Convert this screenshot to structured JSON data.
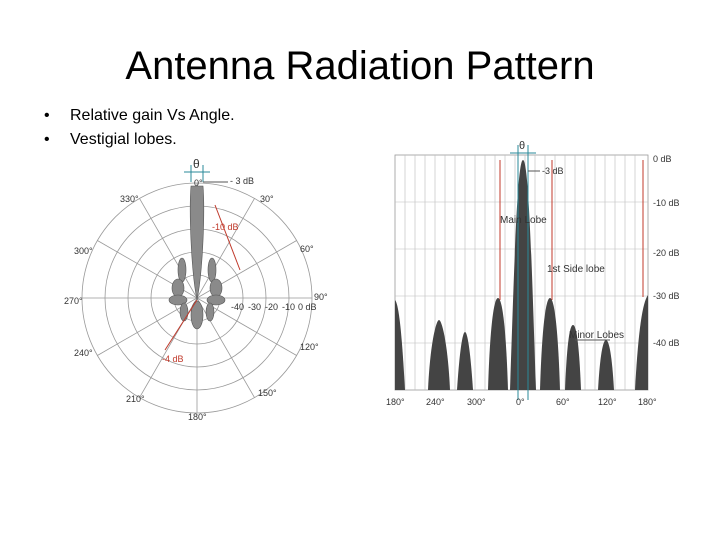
{
  "slide": {
    "title": "Antenna Radiation Pattern",
    "bullets": [
      "Relative gain Vs Angle.",
      "Vestigial lobes."
    ]
  },
  "polar": {
    "angle_labels": [
      "0°",
      "30°",
      "60°",
      "90°",
      "120°",
      "150°",
      "180°",
      "210°",
      "240°",
      "270°",
      "300°",
      "330°"
    ],
    "ring_labels": [
      "-40",
      "-30",
      "-20",
      "-10",
      "0 dB"
    ],
    "theta_label": "θ",
    "annotations": {
      "minus3": "- 3 dB",
      "minus10": "-10 dB",
      "minus4": "-4 dB"
    }
  },
  "rect": {
    "theta_label": "θ",
    "x_labels": [
      "180°",
      "240°",
      "300°",
      "0°",
      "60°",
      "120°",
      "180°"
    ],
    "y_labels": [
      "0 dB",
      "-10 dB",
      "-20 dB",
      "-30 dB",
      "-40 dB"
    ],
    "annotations": {
      "minus3": "-3 dB",
      "main_lobe": "Main Lobe",
      "side_lobe": "1st Side lobe",
      "minor_lobes": "Minor Lobes"
    }
  },
  "colors": {
    "lobe_fill_polar": "#8a8a8a",
    "lobe_fill_rect": "#444444",
    "grid": "#999999",
    "annot": "#c0392b",
    "theta_line": "#2a8a9a"
  }
}
